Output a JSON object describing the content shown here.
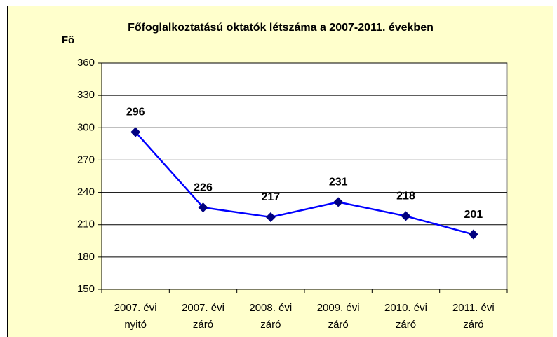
{
  "chart_data": {
    "type": "line",
    "title": "Főfoglalkoztatású oktatók létszáma a 2007-2011. években",
    "y_label": "Fő",
    "categories": [
      "2007. évi nyitó",
      "2007. évi záró",
      "2008. évi záró",
      "2009. évi záró",
      "2010. évi záró",
      "2011. évi záró"
    ],
    "series": [
      {
        "name": "Fő",
        "color": "#0000ff",
        "marker_color": "#000080",
        "values": [
          296,
          226,
          217,
          231,
          218,
          201
        ]
      }
    ],
    "ylim": [
      150,
      360
    ],
    "yticks": [
      150,
      180,
      210,
      240,
      270,
      300,
      330,
      360
    ],
    "grid": true
  }
}
